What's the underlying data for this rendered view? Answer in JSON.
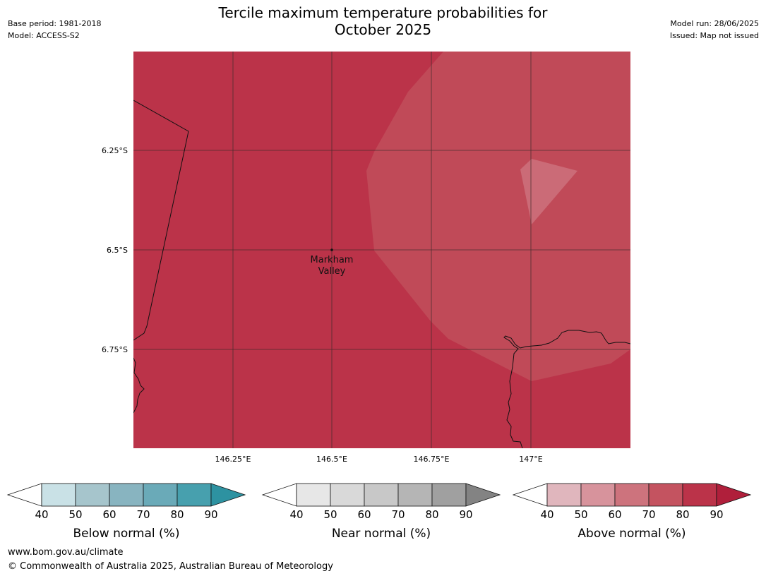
{
  "title_line1": "Tercile maximum temperature probabilities for",
  "title_line2": "October 2025",
  "base_period": "Base period: 1981-2018",
  "model": "Model: ACCESS-S2",
  "model_run": "Model run: 28/06/2025",
  "issued": "Issued: Map not issued",
  "map": {
    "lat_labels": [
      "6.25°S",
      "6.5°S",
      "6.75°S"
    ],
    "lon_labels": [
      "146.25°E",
      "146.5°E",
      "146.75°E",
      "147°E"
    ],
    "place_line1": "Markham",
    "place_line2": "Valley",
    "colors": {
      "above_90": "#bb3349",
      "above_80": "#c04a58",
      "above_70": "#cb6b77"
    }
  },
  "colorbars": [
    {
      "label": "Below normal (%)",
      "ticks": [
        "40",
        "50",
        "60",
        "70",
        "80",
        "90"
      ],
      "colors": [
        "#ffffff",
        "#c9e1e6",
        "#a6c5cc",
        "#88b4c0",
        "#6aaab8",
        "#47a0ae",
        "#2d92a1"
      ]
    },
    {
      "label": "Near normal (%)",
      "ticks": [
        "40",
        "50",
        "60",
        "70",
        "80",
        "90"
      ],
      "colors": [
        "#ffffff",
        "#e7e7e7",
        "#d9d9d9",
        "#c8c8c8",
        "#b5b5b5",
        "#a0a0a0",
        "#838383"
      ]
    },
    {
      "label": "Above normal (%)",
      "ticks": [
        "40",
        "50",
        "60",
        "70",
        "80",
        "90"
      ],
      "colors": [
        "#ffffff",
        "#e0b6bd",
        "#d7939c",
        "#cd737d",
        "#c45360",
        "#bb3349",
        "#b01f3b"
      ]
    }
  ],
  "footer_url": "www.bom.gov.au/climate",
  "footer_copyright": "© Commonwealth of Australia 2025, Australian Bureau of Meteorology"
}
